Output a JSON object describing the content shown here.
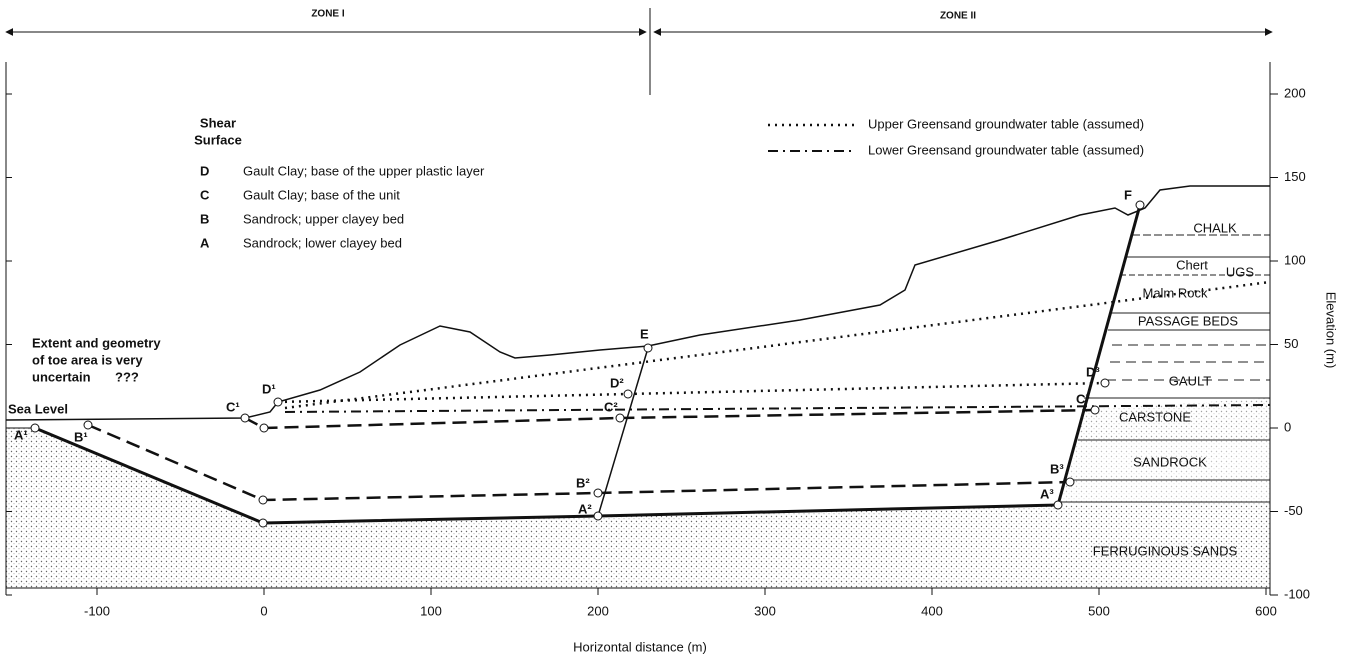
{
  "zones": [
    "ZONE I",
    "ZONE II"
  ],
  "legend_title": [
    "Shear",
    "Surface"
  ],
  "shear_surfaces": [
    {
      "key": "D",
      "text": "Gault Clay; base of the upper plastic layer"
    },
    {
      "key": "C",
      "text": "Gault Clay; base of the unit"
    },
    {
      "key": "B",
      "text": "Sandrock; upper clayey bed"
    },
    {
      "key": "A",
      "text": "Sandrock; lower clayey bed"
    }
  ],
  "groundwater": [
    "Upper Greensand groundwater table (assumed)",
    "Lower Greensand groundwater table (assumed)"
  ],
  "note": [
    "Extent and geometry",
    "of toe area is very",
    "uncertain",
    "???"
  ],
  "sea_level": "Sea Level",
  "points": [
    "A¹",
    "B¹",
    "C¹",
    "D¹",
    "A²",
    "B²",
    "C²",
    "D²",
    "A³",
    "B³",
    "C³",
    "D³",
    "E",
    "F"
  ],
  "strata": [
    "CHALK",
    "Chert",
    "UGS",
    "Malm Rock",
    "PASSAGE BEDS",
    "GAULT",
    "CARSTONE",
    "SANDROCK",
    "FERRUGINOUS SANDS"
  ],
  "x_axis": {
    "label": "Horizontal distance (m)",
    "ticks": [
      -100,
      0,
      100,
      200,
      300,
      400,
      500,
      600
    ]
  },
  "y_axis": {
    "label": "Elevation (m)",
    "ticks": [
      -100,
      -50,
      0,
      50,
      100,
      150,
      200
    ]
  }
}
